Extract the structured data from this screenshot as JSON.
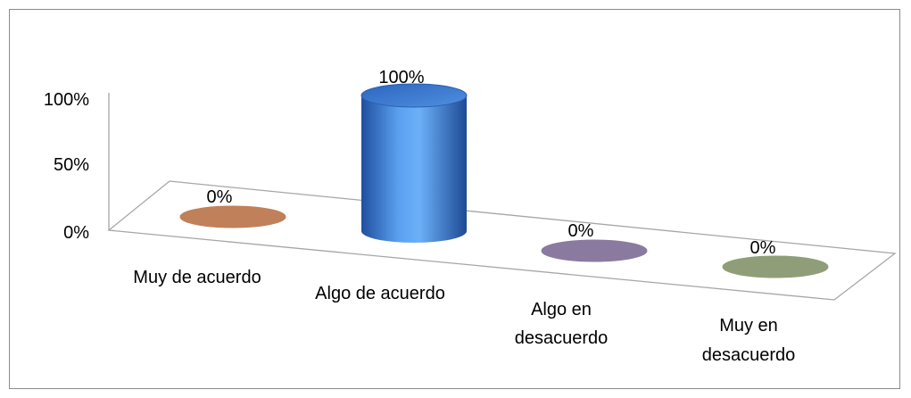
{
  "chart_data": {
    "type": "bar",
    "style": "3d-cylinder",
    "categories": [
      "Muy de acuerdo",
      "Algo de acuerdo",
      "Algo en desacuerdo",
      "Muy en desacuerdo"
    ],
    "category_lines": [
      [
        "Muy de acuerdo"
      ],
      [
        "Algo de acuerdo"
      ],
      [
        "Algo en",
        "desacuerdo"
      ],
      [
        "Muy en",
        "desacuerdo"
      ]
    ],
    "values": [
      0,
      100,
      0,
      0
    ],
    "data_labels": [
      "0%",
      "100%",
      "0%",
      "0%"
    ],
    "y_ticks": [
      "0%",
      "50%",
      "100%"
    ],
    "y_tick_values": [
      0,
      50,
      100
    ],
    "ylim": [
      0,
      100
    ],
    "colors": [
      "#c0805a",
      "#3d7fd6",
      "#8a7aa0",
      "#8f9e78"
    ],
    "title": "",
    "xlabel": "",
    "ylabel": "",
    "legend": "none",
    "grid": false
  }
}
